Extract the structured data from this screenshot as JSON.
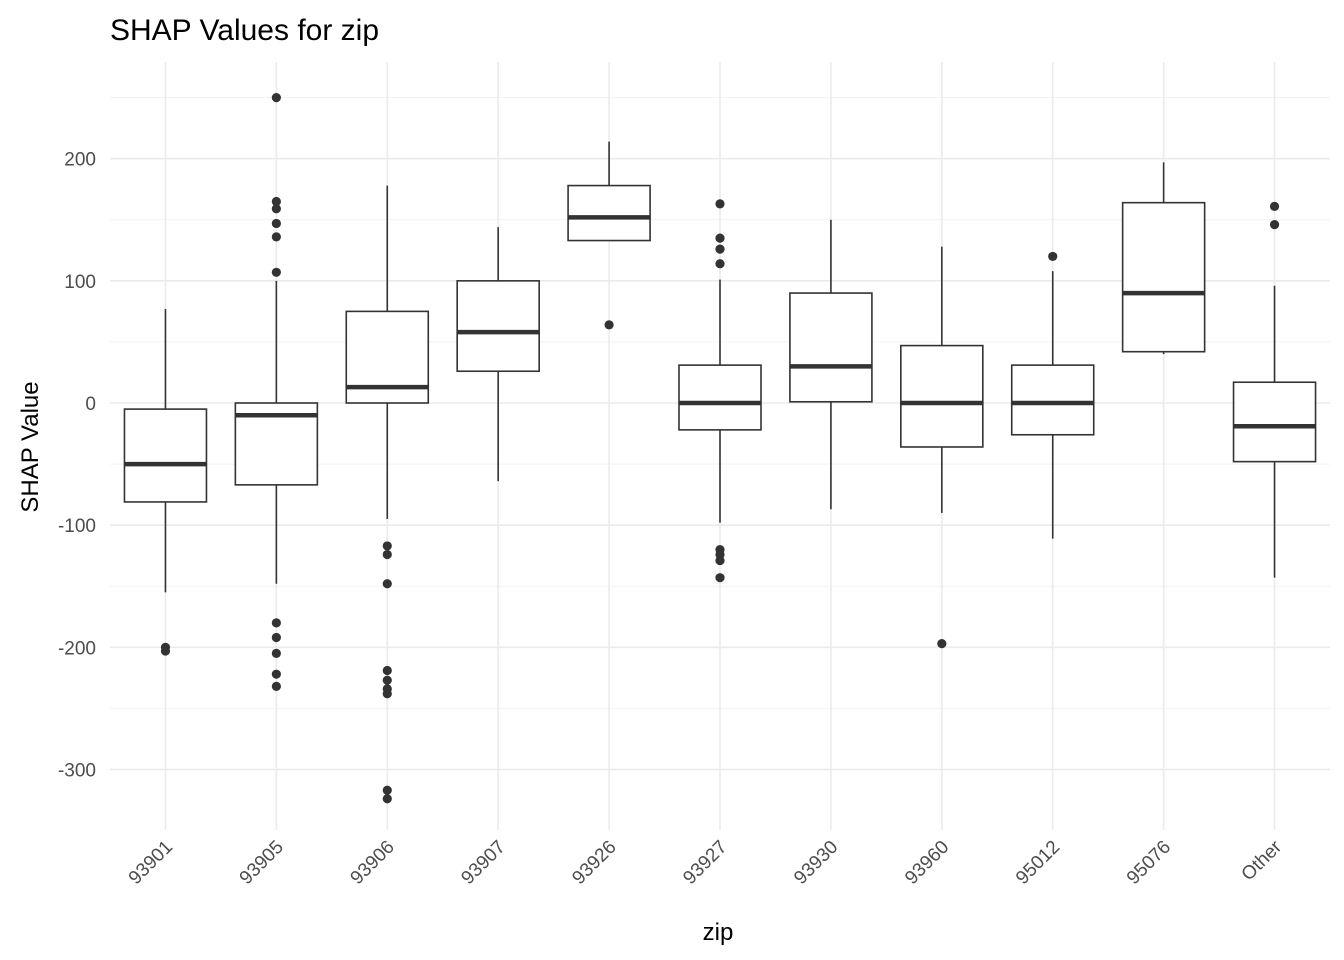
{
  "chart_data": {
    "type": "boxplot",
    "title": "SHAP Values for zip",
    "xlabel": "zip",
    "ylabel": "SHAP Value",
    "ylim": [
      -350,
      280
    ],
    "yticks": [
      -300,
      -200,
      -100,
      0,
      100,
      200
    ],
    "ytick_labels": [
      "-300",
      "-200",
      "-100",
      "0",
      "100",
      "200"
    ],
    "grid": true,
    "categories": [
      "93901",
      "93905",
      "93906",
      "93907",
      "93926",
      "93927",
      "93930",
      "93960",
      "95012",
      "95076",
      "Other"
    ],
    "boxes": [
      {
        "category": "93901",
        "whisker_low": -155,
        "q1": -81,
        "median": -50,
        "q3": -5,
        "whisker_high": 77,
        "outliers": [
          -200,
          -203
        ]
      },
      {
        "category": "93905",
        "whisker_low": -148,
        "q1": -67,
        "median": -10,
        "q3": 0,
        "whisker_high": 100,
        "outliers": [
          250,
          165,
          159,
          147,
          136,
          107,
          -180,
          -192,
          -205,
          -222,
          -232
        ]
      },
      {
        "category": "93906",
        "whisker_low": -95,
        "q1": 0,
        "median": 13,
        "q3": 75,
        "whisker_high": 178,
        "outliers": [
          -117,
          -124,
          -148,
          -219,
          -227,
          -234,
          -238,
          -317,
          -324
        ]
      },
      {
        "category": "93907",
        "whisker_low": -64,
        "q1": 26,
        "median": 58,
        "q3": 100,
        "whisker_high": 144,
        "outliers": []
      },
      {
        "category": "93926",
        "whisker_low": 133,
        "q1": 133,
        "median": 152,
        "q3": 178,
        "whisker_high": 214,
        "outliers": [
          64
        ]
      },
      {
        "category": "93927",
        "whisker_low": -98,
        "q1": -22,
        "median": 0,
        "q3": 31,
        "whisker_high": 101,
        "outliers": [
          163,
          135,
          126,
          114,
          -120,
          -124,
          -129,
          -143
        ]
      },
      {
        "category": "93930",
        "whisker_low": -87,
        "q1": 1,
        "median": 30,
        "q3": 90,
        "whisker_high": 150,
        "outliers": []
      },
      {
        "category": "93960",
        "whisker_low": -90,
        "q1": -36,
        "median": 0,
        "q3": 47,
        "whisker_high": 128,
        "outliers": [
          -197
        ]
      },
      {
        "category": "95012",
        "whisker_low": -111,
        "q1": -26,
        "median": 0,
        "q3": 31,
        "whisker_high": 108,
        "outliers": [
          120
        ]
      },
      {
        "category": "95076",
        "whisker_low": 40,
        "q1": 42,
        "median": 90,
        "q3": 164,
        "whisker_high": 197,
        "outliers": []
      },
      {
        "category": "Other",
        "whisker_low": -143,
        "q1": -48,
        "median": -19,
        "q3": 17,
        "whisker_high": 96,
        "outliers": [
          161,
          146
        ]
      }
    ]
  }
}
